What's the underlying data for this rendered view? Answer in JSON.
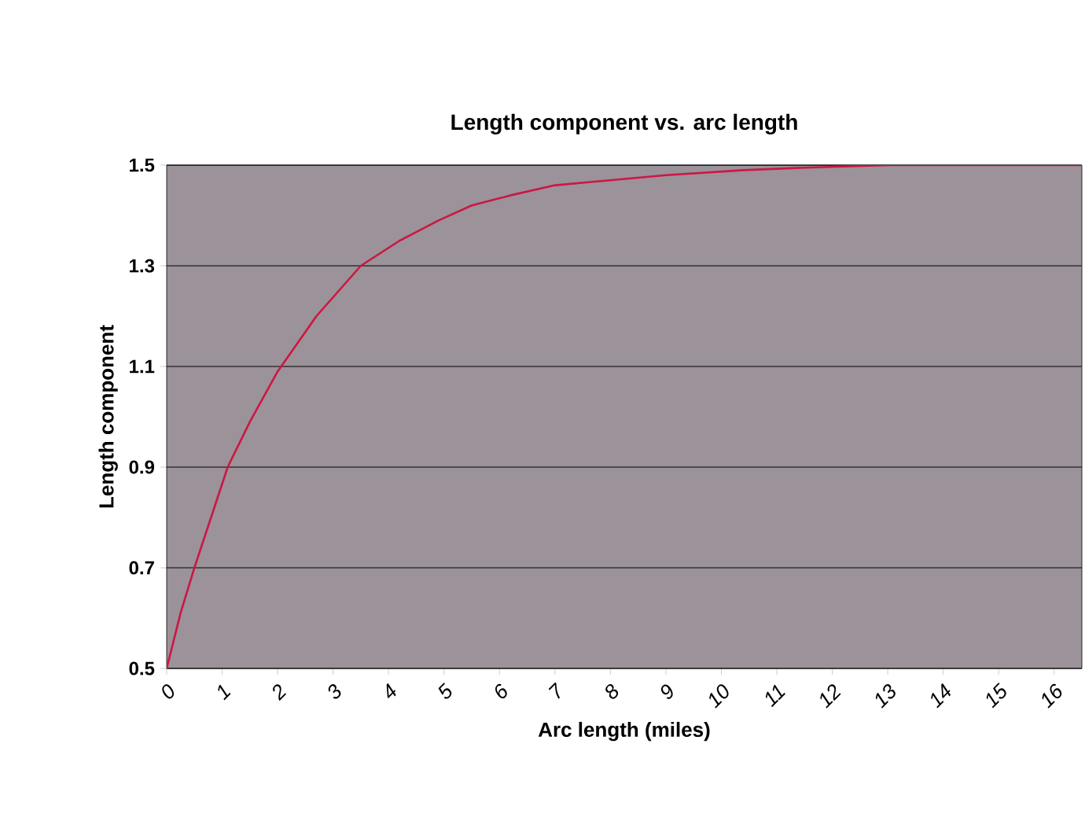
{
  "chart_data": {
    "type": "line",
    "title": "Length component vs. arc length",
    "xlabel": "Arc length (miles)",
    "ylabel": "Length component",
    "xlim": [
      0,
      16.5
    ],
    "xticks": [
      0,
      1,
      2,
      3,
      4,
      5,
      6,
      7,
      8,
      9,
      10,
      11,
      12,
      13,
      14,
      15,
      16
    ],
    "ylim": [
      0.5,
      1.5
    ],
    "yticks": [
      {
        "value": 0.5,
        "label": "0.5"
      },
      {
        "value": 0.7,
        "label": "0.7"
      },
      {
        "value": 0.9,
        "label": "0.9"
      },
      {
        "value": 1.1,
        "label": "1.1"
      },
      {
        "value": 1.3,
        "label": "1.3"
      },
      {
        "value": 1.5,
        "label": "1.5"
      }
    ],
    "grid": "y",
    "marker": "none",
    "line_style": "solid",
    "series": [
      {
        "color": "#cc1744",
        "x": [
          0,
          0.25,
          0.5,
          0.8,
          1.1,
          1.5,
          2.0,
          2.7,
          3.5,
          4.2,
          4.9,
          5.5,
          6.2,
          7.0,
          8.0,
          9.0,
          10.4,
          11.5,
          13.0,
          14.5,
          16.5
        ],
        "values": [
          0.5,
          0.61,
          0.7,
          0.8,
          0.9,
          0.99,
          1.09,
          1.2,
          1.3,
          1.35,
          1.39,
          1.42,
          1.44,
          1.46,
          1.47,
          1.48,
          1.49,
          1.495,
          1.5,
          1.5,
          1.5
        ]
      }
    ]
  }
}
